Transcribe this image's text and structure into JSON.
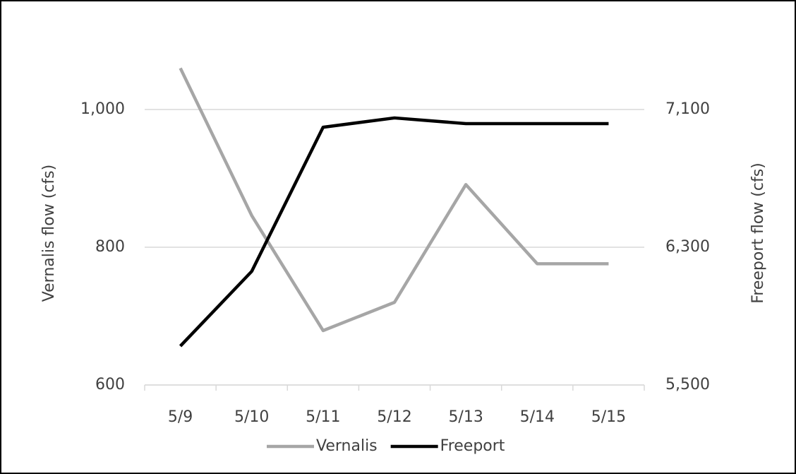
{
  "chart_data": {
    "type": "line",
    "categories": [
      "5/9",
      "5/10",
      "5/11",
      "5/12",
      "5/13",
      "5/14",
      "5/15"
    ],
    "series": [
      {
        "name": "Vernalis",
        "color": "#a6a6a6",
        "values": [
          1060,
          846,
          679,
          720,
          891,
          776,
          776
        ]
      },
      {
        "name": "Freeport",
        "color": "#000000",
        "axis": "y2",
        "values": [
          5726,
          6160,
          6997,
          7051,
          7018,
          7018,
          7018
        ]
      }
    ],
    "ylabel": "Vernalis flow (cfs)",
    "y2label": "Freeport flow (cfs)",
    "ylim": [
      600,
      1100
    ],
    "yticks": [
      600,
      800,
      {
        "value": 1000,
        "label": "1,000"
      }
    ],
    "y2lim": [
      5500,
      7500
    ],
    "y2ticks": [
      {
        "value": 5500,
        "label": "5,500"
      },
      {
        "value": 6300,
        "label": "6,300"
      },
      {
        "value": 7100,
        "label": "7,100"
      }
    ],
    "grid": true,
    "legend": "bottom"
  }
}
